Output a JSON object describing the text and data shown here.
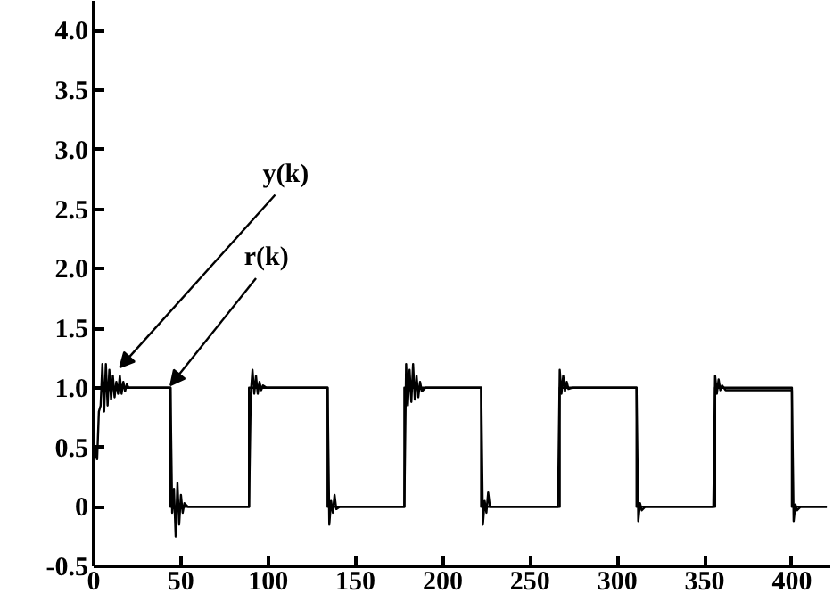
{
  "chart_data": {
    "type": "line",
    "xlim": [
      0,
      422
    ],
    "ylim": [
      -0.5,
      4.25
    ],
    "xticks": [
      0,
      50,
      100,
      150,
      200,
      250,
      300,
      350,
      400
    ],
    "yticks": [
      {
        "value": -0.5,
        "label": "-0.5"
      },
      0,
      {
        "value": 0.5,
        "label": "0.5"
      },
      {
        "value": 1,
        "label": "1.0"
      },
      {
        "value": 1.5,
        "label": "1.5"
      },
      {
        "value": 2,
        "label": "2.0"
      },
      {
        "value": 2.5,
        "label": "2.5"
      },
      {
        "value": 3,
        "label": "3.0"
      },
      {
        "value": 3.5,
        "label": "3.5"
      },
      {
        "value": 4,
        "label": "4.0"
      }
    ],
    "grid": false,
    "marker": "none",
    "line_style": "solid",
    "series": [
      {
        "color": "#000000",
        "x": [
          0,
          1,
          2,
          3,
          4,
          5,
          6,
          7,
          8,
          9,
          10,
          11,
          12,
          13,
          14,
          15,
          16,
          17,
          18,
          19,
          20,
          43,
          44,
          45,
          46,
          47,
          48,
          49,
          50,
          51,
          52,
          54,
          89,
          90,
          91,
          92,
          93,
          94,
          95,
          96,
          97,
          99,
          134,
          135,
          136,
          137,
          138,
          139,
          141,
          178,
          179,
          180,
          181,
          182,
          183,
          184,
          185,
          186,
          187,
          188,
          190,
          222,
          223,
          224,
          225,
          226,
          227,
          229,
          266,
          267,
          268,
          269,
          270,
          271,
          272,
          274,
          311,
          312,
          313,
          314,
          316,
          355,
          356,
          357,
          358,
          359,
          360,
          362,
          400,
          401,
          402,
          403,
          405,
          420
        ],
        "values": [
          0.3,
          0.5,
          0.4,
          0.8,
          0.85,
          1.2,
          0.8,
          1.2,
          0.85,
          1.15,
          0.9,
          1.1,
          0.92,
          1.05,
          0.95,
          1.1,
          0.95,
          1.05,
          0.97,
          1.03,
          1.0,
          1.0,
          1.0,
          -0.05,
          0.15,
          -0.25,
          0.2,
          -0.15,
          0.1,
          -0.05,
          0.03,
          0,
          0,
          0.95,
          1.15,
          0.95,
          1.1,
          0.95,
          1.05,
          0.98,
          1.02,
          1.0,
          1.0,
          -0.15,
          0.05,
          -0.05,
          0.1,
          -0.02,
          0,
          0,
          1.2,
          0.85,
          1.15,
          0.88,
          1.2,
          0.9,
          1.1,
          0.92,
          1.05,
          0.97,
          1.0,
          1.0,
          -0.15,
          0.05,
          -0.05,
          0.12,
          0,
          0,
          0,
          1.15,
          0.95,
          1.1,
          0.97,
          1.05,
          0.99,
          1.0,
          1.0,
          -0.12,
          0.03,
          -0.03,
          0,
          0,
          1.1,
          0.95,
          1.07,
          0.98,
          1.02,
          0.98,
          0.98,
          -0.12,
          0.02,
          -0.03,
          0,
          0
        ]
      },
      {
        "color": "#000000",
        "x": [
          0,
          44,
          44,
          89,
          89,
          134,
          134,
          178,
          178,
          222,
          222,
          267,
          267,
          311,
          311,
          356,
          356,
          400,
          400,
          420
        ],
        "values": [
          1,
          1,
          0,
          0,
          1,
          1,
          0,
          0,
          1,
          1,
          0,
          0,
          1,
          1,
          0,
          0,
          1,
          1,
          0,
          0
        ]
      }
    ],
    "annotations": [
      {
        "text": "y(k)",
        "x": 15,
        "y": 1.17
      },
      {
        "text": "r(k)",
        "x": 44,
        "y": 1.02
      }
    ]
  }
}
